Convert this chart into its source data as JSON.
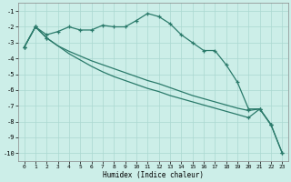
{
  "xlabel": "Humidex (Indice chaleur)",
  "background_color": "#cceee8",
  "grid_color": "#aad8d0",
  "line_color": "#2a7a6a",
  "xlim": [
    -0.5,
    23.5
  ],
  "ylim": [
    -10.5,
    -0.5
  ],
  "yticks": [
    -10,
    -9,
    -8,
    -7,
    -6,
    -5,
    -4,
    -3,
    -2,
    -1
  ],
  "xticks": [
    0,
    1,
    2,
    3,
    4,
    5,
    6,
    7,
    8,
    9,
    10,
    11,
    12,
    13,
    14,
    15,
    16,
    17,
    18,
    19,
    20,
    21,
    22,
    23
  ],
  "line1_x": [
    0,
    1,
    2,
    3,
    4,
    5,
    6,
    7,
    8,
    9,
    10,
    11,
    12,
    13,
    14,
    15,
    16,
    17,
    18,
    19,
    20,
    21,
    22,
    23
  ],
  "line1_y": [
    -3.3,
    -2.0,
    -2.5,
    -2.3,
    -2.0,
    -2.2,
    -2.2,
    -1.9,
    -2.0,
    -2.0,
    -1.6,
    -1.15,
    -1.35,
    -1.8,
    -2.5,
    -3.0,
    -3.5,
    -3.5,
    -4.4,
    -5.5,
    -7.2,
    -7.2,
    -8.2,
    null
  ],
  "line2_x": [
    0,
    1,
    2,
    3,
    4,
    5,
    6,
    7,
    8,
    9,
    10,
    11,
    12,
    13,
    14,
    15,
    16,
    17,
    18,
    19,
    20,
    21,
    22,
    23
  ],
  "line2_y": [
    -3.3,
    -2.0,
    -2.7,
    null,
    null,
    null,
    null,
    null,
    null,
    null,
    null,
    null,
    null,
    null,
    null,
    null,
    null,
    null,
    null,
    null,
    -7.3,
    -7.2,
    -8.2,
    -10.0
  ],
  "line2_full_y": [
    -3.3,
    -2.0,
    -2.7,
    -3.2,
    -3.55,
    -3.85,
    -4.15,
    -4.4,
    -4.65,
    -4.9,
    -5.15,
    -5.4,
    -5.6,
    -5.85,
    -6.1,
    -6.35,
    -6.55,
    -6.75,
    -6.95,
    -7.15,
    -7.3,
    -7.2,
    -8.2,
    -10.0
  ],
  "line3_x": [
    0,
    1,
    2,
    3,
    4,
    5,
    6,
    7,
    8,
    9,
    10,
    11,
    12,
    13,
    14,
    15,
    16,
    17,
    18,
    19,
    20,
    21,
    22,
    23
  ],
  "line3_full_y": [
    -3.3,
    -2.0,
    -2.7,
    -3.2,
    -3.7,
    -4.1,
    -4.5,
    -4.85,
    -5.15,
    -5.4,
    -5.65,
    -5.9,
    -6.1,
    -6.35,
    -6.55,
    -6.75,
    -6.95,
    -7.15,
    -7.35,
    -7.55,
    -7.75,
    -7.2,
    -8.2,
    -10.0
  ],
  "line2_marker_x": [
    0,
    1,
    2,
    20,
    21,
    22,
    23
  ],
  "line2_marker_y": [
    -3.3,
    -2.0,
    -2.7,
    -7.3,
    -7.2,
    -8.2,
    -10.0
  ],
  "line3_marker_x": [
    0,
    1,
    2,
    20,
    21,
    22,
    23
  ],
  "line3_marker_y": [
    -3.3,
    -2.0,
    -2.7,
    -7.75,
    -7.2,
    -8.2,
    -10.0
  ]
}
